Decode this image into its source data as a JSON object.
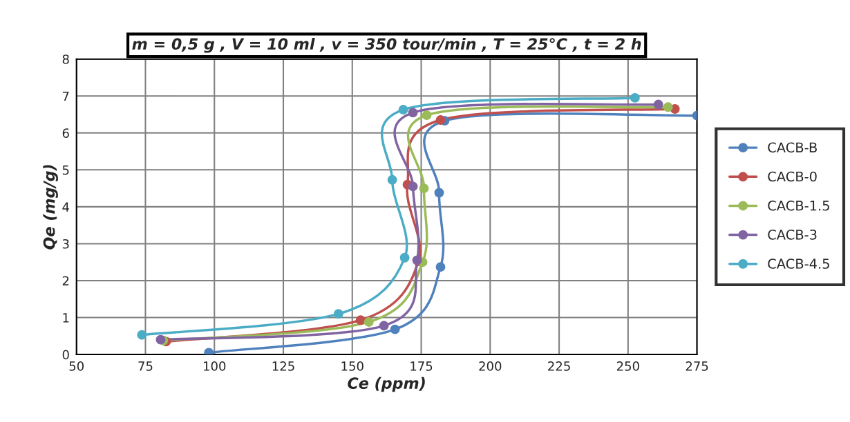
{
  "chart_data": {
    "type": "line",
    "title": "m = 0,5 g , V = 10 ml , v = 350 tour/min , T = 25°C , t = 2 h",
    "xlabel": "Ce (ppm)",
    "ylabel": "Qe (mg/g)",
    "xlim": [
      50,
      275
    ],
    "xticks": [
      50,
      75,
      100,
      125,
      150,
      175,
      200,
      225,
      250,
      275
    ],
    "ylim": [
      0,
      8
    ],
    "yticks": [
      0,
      1,
      2,
      3,
      4,
      5,
      6,
      7,
      8
    ],
    "grid": true,
    "legend": "right",
    "marker": "circle",
    "line_style": "solid",
    "series": [
      {
        "name": "CACB-B",
        "color": "#4f81bd",
        "x": [
          98,
          165.5,
          182,
          181.5,
          183.5,
          275
        ],
        "values": [
          0.05,
          0.68,
          2.37,
          4.38,
          6.33,
          6.47
        ]
      },
      {
        "name": "CACB-0",
        "color": "#c0504d",
        "x": [
          82.5,
          153,
          174,
          170,
          182,
          267
        ],
        "values": [
          0.35,
          0.93,
          2.52,
          4.6,
          6.35,
          6.65
        ]
      },
      {
        "name": "CACB-1.5",
        "color": "#9bbb59",
        "x": [
          81.5,
          156,
          175.5,
          176,
          177,
          264.5
        ],
        "values": [
          0.38,
          0.88,
          2.5,
          4.5,
          6.48,
          6.7
        ]
      },
      {
        "name": "CACB-3",
        "color": "#8064a2",
        "x": [
          80.5,
          161.5,
          173.5,
          172,
          172,
          261
        ],
        "values": [
          0.4,
          0.78,
          2.55,
          4.55,
          6.55,
          6.77
        ]
      },
      {
        "name": "CACB-4.5",
        "color": "#4bacc6",
        "x": [
          73.7,
          145,
          169,
          164.5,
          168.5,
          252.5
        ],
        "values": [
          0.53,
          1.1,
          2.62,
          4.73,
          6.63,
          6.95
        ]
      }
    ]
  }
}
